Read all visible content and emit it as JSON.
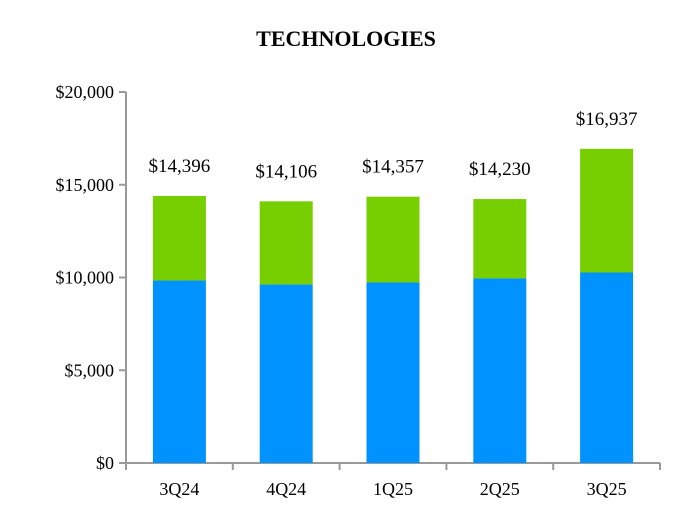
{
  "chart_data": {
    "type": "bar",
    "stacked": true,
    "title": "TECHNOLOGIES",
    "categories": [
      "3Q24",
      "4Q24",
      "1Q25",
      "2Q25",
      "3Q25"
    ],
    "series": [
      {
        "values": [
          9840,
          9620,
          9730,
          9950,
          10270
        ],
        "color": "#0093FF"
      },
      {
        "values": [
          4556,
          4486,
          4627,
          4280,
          6667
        ],
        "color": "#77CE00"
      }
    ],
    "totals": [
      14396,
      14106,
      14357,
      14230,
      16937
    ],
    "total_labels": [
      "$14,396",
      "$14,106",
      "$14,357",
      "$14,230",
      "$16,937"
    ],
    "ylim": [
      0,
      20000
    ],
    "yticks": [
      0,
      5000,
      10000,
      15000,
      20000
    ],
    "ytick_labels": [
      "$0",
      "$5,000",
      "$10,000",
      "$15,000",
      "$20,000"
    ],
    "grid": false,
    "xlabel": "",
    "ylabel": ""
  }
}
